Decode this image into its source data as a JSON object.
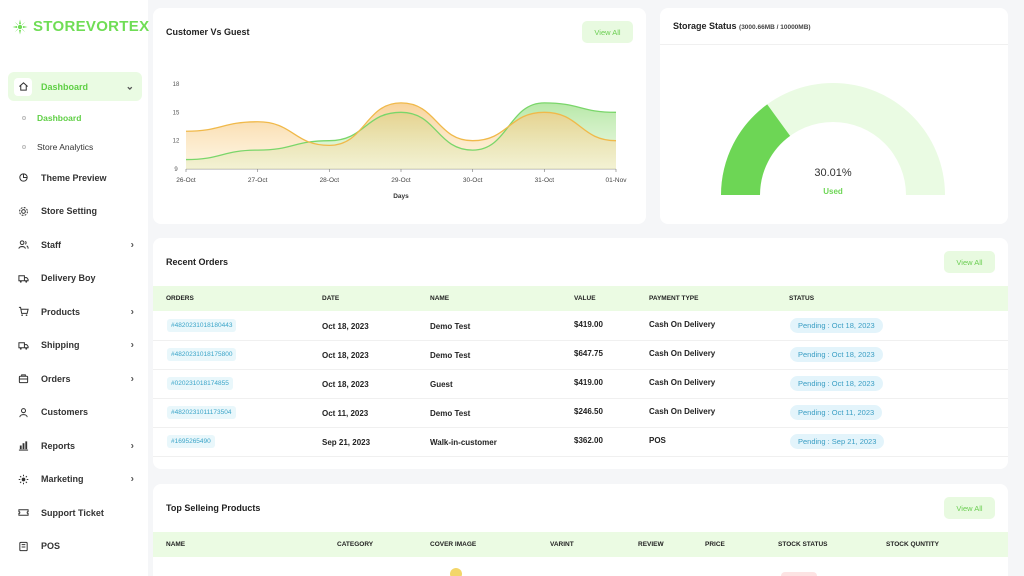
{
  "app": {
    "logo_text": "STOREVORTEX"
  },
  "colors": {
    "accent": "#6fdd55",
    "orange": "#f0b94a",
    "green": "#7ad66a"
  },
  "sidebar": {
    "items": [
      {
        "label": "Dashboard",
        "icon": "home-icon"
      },
      {
        "label": "Theme Preview",
        "icon": "theme-icon"
      },
      {
        "label": "Store Setting",
        "icon": "gear-icon"
      },
      {
        "label": "Staff",
        "icon": "users-icon"
      },
      {
        "label": "Delivery Boy",
        "icon": "truck-icon"
      },
      {
        "label": "Products",
        "icon": "cart-icon"
      },
      {
        "label": "Shipping",
        "icon": "shipping-icon"
      },
      {
        "label": "Orders",
        "icon": "bag-icon"
      },
      {
        "label": "Customers",
        "icon": "user-icon"
      },
      {
        "label": "Reports",
        "icon": "chart-icon"
      },
      {
        "label": "Marketing",
        "icon": "marketing-icon"
      },
      {
        "label": "Support Ticket",
        "icon": "ticket-icon"
      },
      {
        "label": "POS",
        "icon": "pos-icon"
      }
    ],
    "sub_items": [
      "Dashboard",
      "Store Analytics"
    ]
  },
  "customer_card": {
    "title": "Customer Vs Guest",
    "view_all": "View All"
  },
  "storage_card": {
    "title": "Storage Status",
    "detail": "(3000.66MB / 10000MB)",
    "percent": "30.01%",
    "used_label": "Used",
    "value": 30.01
  },
  "chart_data": {
    "type": "area",
    "x": [
      "26-Oct",
      "27-Oct",
      "28-Oct",
      "29-Oct",
      "30-Oct",
      "31-Oct",
      "01-Nov"
    ],
    "yticks": [
      "9",
      "12",
      "15",
      "18"
    ],
    "ylim": [
      9,
      18
    ],
    "xlabel": "Days",
    "series": [
      {
        "values": [
          13,
          14,
          11.5,
          16,
          12,
          15,
          12
        ]
      },
      {
        "values": [
          10,
          11,
          12,
          15,
          11,
          16,
          15
        ]
      }
    ]
  },
  "orders": {
    "title": "Recent Orders",
    "view_all": "View All",
    "headers": [
      "ORDERS",
      "DATE",
      "NAME",
      "VALUE",
      "PAYMENT TYPE",
      "STATUS"
    ],
    "rows": [
      {
        "id": "#4820231018180443",
        "date": "Oct 18, 2023",
        "name": "Demo Test",
        "value": "$419.00",
        "payment": "Cash On Delivery",
        "status": "Pending : Oct 18, 2023"
      },
      {
        "id": "#4820231018175800",
        "date": "Oct 18, 2023",
        "name": "Demo Test",
        "value": "$647.75",
        "payment": "Cash On Delivery",
        "status": "Pending : Oct 18, 2023"
      },
      {
        "id": "#020231018174855",
        "date": "Oct 18, 2023",
        "name": "Guest",
        "value": "$419.00",
        "payment": "Cash On Delivery",
        "status": "Pending : Oct 18, 2023"
      },
      {
        "id": "#4820231011173504",
        "date": "Oct 11, 2023",
        "name": "Demo Test",
        "value": "$246.50",
        "payment": "Cash On Delivery",
        "status": "Pending : Oct 11, 2023"
      },
      {
        "id": "#1695265490",
        "date": "Sep 21, 2023",
        "name": "Walk-in-customer",
        "value": "$362.00",
        "payment": "POS",
        "status": "Pending : Sep 21, 2023"
      }
    ]
  },
  "top_products": {
    "title": "Top Selleing Products",
    "view_all": "View All",
    "headers": [
      "NAME",
      "CATEGORY",
      "COVER IMAGE",
      "VARINT",
      "REVIEW",
      "PRICE",
      "STOCK STATUS",
      "STOCK QUNTITY"
    ]
  }
}
